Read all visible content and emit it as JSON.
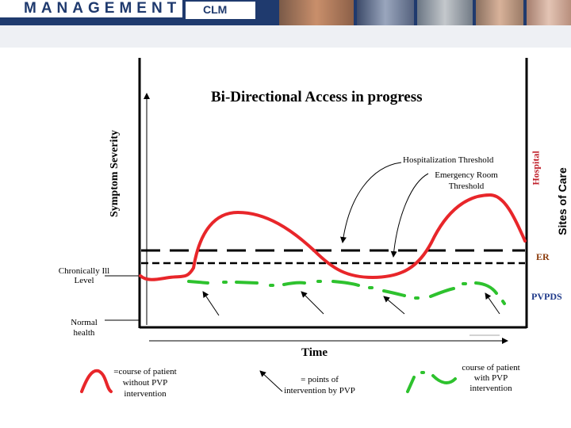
{
  "header": {
    "wordmark": "MANAGEMENT",
    "sub_mark": "CLM",
    "photos": [
      "portrait-photo",
      "care-photo",
      "clinic-photo",
      "patient-photo",
      "bedside-photo"
    ]
  },
  "diagram": {
    "title": "Bi-Directional Access in progress",
    "y_axis_label": "Symptom Severity",
    "x_axis_label": "Time",
    "right_axis_label": "Sites of Care",
    "levels": {
      "chronic": "Chronically Ill Level",
      "normal": "Normal health"
    },
    "sites": {
      "hospital": "Hospital",
      "er": "ER",
      "pvpds": "PVPDS"
    },
    "annotations": {
      "hospitalization_threshold": "Hospitalization Threshold",
      "emergency_room_threshold": "Emergency Room Threshold"
    },
    "legend": [
      {
        "icon": "red-curve-icon",
        "text": "=course of patient without PVP intervention"
      },
      {
        "icon": "arrow-icon",
        "text": "= points of intervention by PVP"
      },
      {
        "icon": "green-dashed-curve-icon",
        "text": "course of patient with PVP intervention"
      }
    ],
    "colors": {
      "without_pvp": "#e8262a",
      "with_pvp": "#2ec22e",
      "hospital_label": "#c0202b",
      "er_label": "#8a3a0a",
      "pvpds_label": "#1f3a8a",
      "banner": "#1f3a6e"
    }
  }
}
